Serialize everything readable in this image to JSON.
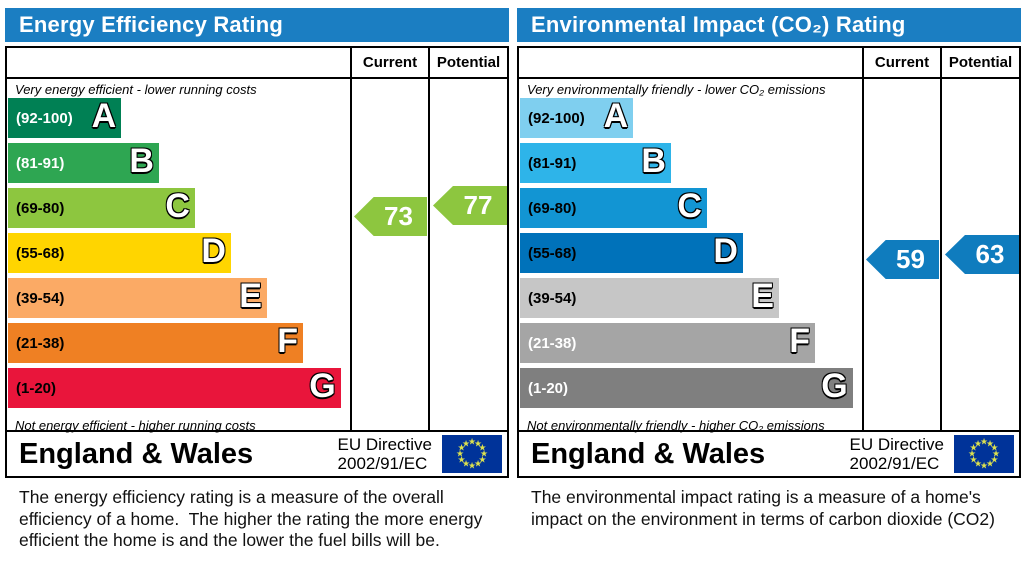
{
  "accent": {
    "header_blue": "#1B7EC2",
    "eu_flag_blue": "#003399",
    "eu_star_color": "#DCE14E"
  },
  "chart_data": [
    {
      "type": "bar",
      "title": "Energy Efficiency Rating",
      "orientation": "horizontal",
      "categories": [
        "A",
        "B",
        "C",
        "D",
        "E",
        "F",
        "G"
      ],
      "ranges": [
        "(92-100)",
        "(81-91)",
        "(69-80)",
        "(55-68)",
        "(39-54)",
        "(21-38)",
        "(1-20)"
      ],
      "band_colors": [
        "#008054",
        "#2EA652",
        "#8DC63F",
        "#FFD500",
        "#FBAA65",
        "#EF8023",
        "#E9153B"
      ],
      "current": 73,
      "current_band": "C",
      "potential": 77,
      "potential_band": "C",
      "top_note": "Very energy efficient - lower running costs",
      "bottom_note": "Not energy efficient - higher running costs",
      "value_scale": [
        1,
        100
      ]
    },
    {
      "type": "bar",
      "title": "Environmental Impact (CO₂) Rating",
      "orientation": "horizontal",
      "categories": [
        "A",
        "B",
        "C",
        "D",
        "E",
        "F",
        "G"
      ],
      "ranges": [
        "(92-100)",
        "(81-91)",
        "(69-80)",
        "(55-68)",
        "(39-54)",
        "(21-38)",
        "(1-20)"
      ],
      "band_colors": [
        "#7FCFEF",
        "#2EB4E9",
        "#1295D3",
        "#0072BA",
        "#C6C6C6",
        "#A5A5A5",
        "#7F7F7F"
      ],
      "current": 59,
      "current_band": "D",
      "potential": 63,
      "potential_band": "D",
      "top_note": "Very environmentally friendly - lower CO₂ emissions",
      "bottom_note": "Not environmentally friendly - higher CO₂ emissions",
      "value_scale": [
        1,
        100
      ]
    }
  ],
  "panels": [
    {
      "title": "Energy Efficiency Rating",
      "columns": {
        "current": "Current",
        "potential": "Potential"
      },
      "top_note": "Very energy efficient - lower running costs",
      "bottom_note": "Not energy efficient - higher running costs",
      "bands": [
        {
          "letter": "A",
          "range": "(92-100)",
          "color": "#008054",
          "text_color": "#FFFFFF"
        },
        {
          "letter": "B",
          "range": "(81-91)",
          "color": "#2EA652",
          "text_color": "#FFFFFF"
        },
        {
          "letter": "C",
          "range": "(69-80)",
          "color": "#8DC63F",
          "text_color": "#000000"
        },
        {
          "letter": "D",
          "range": "(55-68)",
          "color": "#FFD500",
          "text_color": "#000000"
        },
        {
          "letter": "E",
          "range": "(39-54)",
          "color": "#FBAA65",
          "text_color": "#000000"
        },
        {
          "letter": "F",
          "range": "(21-38)",
          "color": "#EF8023",
          "text_color": "#000000"
        },
        {
          "letter": "G",
          "range": "(1-20)",
          "color": "#E9153B",
          "text_color": "#000000"
        }
      ],
      "current": {
        "value": "73",
        "color": "#8DC63F"
      },
      "potential": {
        "value": "77",
        "color": "#8DC63F"
      },
      "footer": {
        "region": "England & Wales",
        "directive_line1": "EU Directive",
        "directive_line2": "2002/91/EC"
      },
      "description": "The energy efficiency rating is a measure of the overall efficiency of a home.  The higher the rating the more energy efficient the home is and the lower the fuel bills will be."
    },
    {
      "title": "Environmental Impact (CO₂) Rating",
      "columns": {
        "current": "Current",
        "potential": "Potential"
      },
      "top_note": "Very environmentally friendly - lower CO₂ emissions",
      "bottom_note": "Not environmentally friendly - higher CO₂ emissions",
      "bands": [
        {
          "letter": "A",
          "range": "(92-100)",
          "color": "#7FCFEF",
          "text_color": "#000000"
        },
        {
          "letter": "B",
          "range": "(81-91)",
          "color": "#2EB4E9",
          "text_color": "#000000"
        },
        {
          "letter": "C",
          "range": "(69-80)",
          "color": "#1295D3",
          "text_color": "#000000"
        },
        {
          "letter": "D",
          "range": "(55-68)",
          "color": "#0072BA",
          "text_color": "#000000"
        },
        {
          "letter": "E",
          "range": "(39-54)",
          "color": "#C6C6C6",
          "text_color": "#000000"
        },
        {
          "letter": "F",
          "range": "(21-38)",
          "color": "#A5A5A5",
          "text_color": "#FFFFFF"
        },
        {
          "letter": "G",
          "range": "(1-20)",
          "color": "#7F7F7F",
          "text_color": "#FFFFFF"
        }
      ],
      "current": {
        "value": "59",
        "color": "#0F7CBE"
      },
      "potential": {
        "value": "63",
        "color": "#0F7CBE"
      },
      "footer": {
        "region": "England & Wales",
        "directive_line1": "EU Directive",
        "directive_line2": "2002/91/EC"
      },
      "description": "The environmental impact rating is a measure of a home's impact on the environment in terms of carbon dioxide (CO2)"
    }
  ]
}
